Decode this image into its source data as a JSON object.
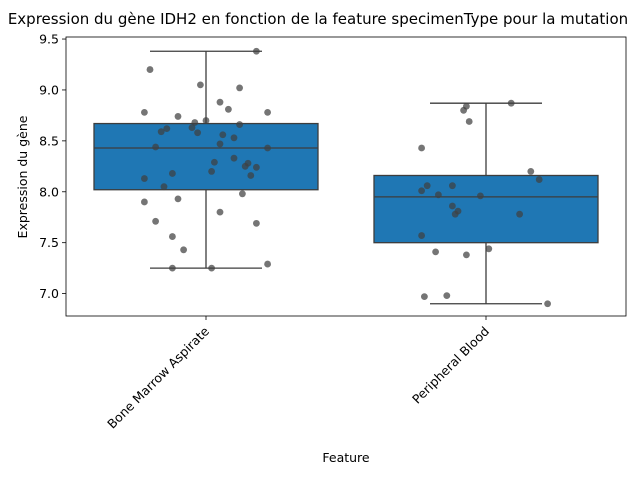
{
  "chart_data": {
    "type": "box",
    "title": "Expression du gène IDH2 en fonction de la feature specimenType pour la mutation",
    "xlabel": "Feature",
    "ylabel": "Expression du gène",
    "ylim": [
      6.78,
      9.52
    ],
    "yticks": [
      7.0,
      7.5,
      8.0,
      8.5,
      9.0,
      9.5
    ],
    "ytick_labels": [
      "7.0",
      "7.5",
      "8.0",
      "8.5",
      "9.0",
      "9.5"
    ],
    "categories": [
      "Bone Marrow Aspirate",
      "Peripheral Blood"
    ],
    "box_color": "#1f77b4",
    "point_color": "#404040",
    "boxes": [
      {
        "category": "Bone Marrow Aspirate",
        "whisker_low": 7.25,
        "q1": 8.02,
        "median": 8.43,
        "q3": 8.67,
        "whisker_high": 9.38
      },
      {
        "category": "Peripheral Blood",
        "whisker_low": 6.9,
        "q1": 7.5,
        "median": 7.95,
        "q3": 8.16,
        "whisker_high": 8.87
      }
    ],
    "points": [
      [
        {
          "j": -0.2,
          "y": 9.2
        },
        {
          "j": -0.02,
          "y": 9.05
        },
        {
          "j": 0.12,
          "y": 9.02
        },
        {
          "j": 0.18,
          "y": 9.38
        },
        {
          "j": 0.05,
          "y": 8.88
        },
        {
          "j": 0.08,
          "y": 8.81
        },
        {
          "j": 0.22,
          "y": 8.78
        },
        {
          "j": -0.22,
          "y": 8.78
        },
        {
          "j": -0.1,
          "y": 8.74
        },
        {
          "j": -0.04,
          "y": 8.68
        },
        {
          "j": 0.0,
          "y": 8.7
        },
        {
          "j": 0.12,
          "y": 8.66
        },
        {
          "j": -0.14,
          "y": 8.62
        },
        {
          "j": -0.05,
          "y": 8.63
        },
        {
          "j": -0.16,
          "y": 8.59
        },
        {
          "j": -0.03,
          "y": 8.58
        },
        {
          "j": 0.06,
          "y": 8.56
        },
        {
          "j": 0.1,
          "y": 8.53
        },
        {
          "j": 0.05,
          "y": 8.47
        },
        {
          "j": 0.22,
          "y": 8.43
        },
        {
          "j": -0.18,
          "y": 8.44
        },
        {
          "j": 0.1,
          "y": 8.33
        },
        {
          "j": 0.03,
          "y": 8.29
        },
        {
          "j": 0.15,
          "y": 8.28
        },
        {
          "j": 0.18,
          "y": 8.24
        },
        {
          "j": 0.14,
          "y": 8.25
        },
        {
          "j": 0.02,
          "y": 8.2
        },
        {
          "j": -0.12,
          "y": 8.18
        },
        {
          "j": 0.16,
          "y": 8.16
        },
        {
          "j": -0.22,
          "y": 8.13
        },
        {
          "j": -0.15,
          "y": 8.05
        },
        {
          "j": 0.13,
          "y": 7.98
        },
        {
          "j": -0.1,
          "y": 7.93
        },
        {
          "j": -0.22,
          "y": 7.9
        },
        {
          "j": 0.05,
          "y": 7.8
        },
        {
          "j": -0.18,
          "y": 7.71
        },
        {
          "j": 0.18,
          "y": 7.69
        },
        {
          "j": -0.12,
          "y": 7.56
        },
        {
          "j": -0.08,
          "y": 7.43
        },
        {
          "j": 0.22,
          "y": 7.29
        },
        {
          "j": -0.12,
          "y": 7.25
        },
        {
          "j": 0.02,
          "y": 7.25
        }
      ],
      [
        {
          "j": 0.09,
          "y": 8.87
        },
        {
          "j": -0.07,
          "y": 8.84
        },
        {
          "j": -0.08,
          "y": 8.8
        },
        {
          "j": -0.06,
          "y": 8.69
        },
        {
          "j": -0.23,
          "y": 8.43
        },
        {
          "j": 0.16,
          "y": 8.2
        },
        {
          "j": 0.19,
          "y": 8.12
        },
        {
          "j": -0.21,
          "y": 8.06
        },
        {
          "j": -0.12,
          "y": 8.06
        },
        {
          "j": -0.23,
          "y": 8.01
        },
        {
          "j": -0.17,
          "y": 7.97
        },
        {
          "j": -0.02,
          "y": 7.96
        },
        {
          "j": -0.12,
          "y": 7.86
        },
        {
          "j": -0.1,
          "y": 7.81
        },
        {
          "j": -0.11,
          "y": 7.78
        },
        {
          "j": 0.12,
          "y": 7.78
        },
        {
          "j": -0.23,
          "y": 7.57
        },
        {
          "j": 0.01,
          "y": 7.44
        },
        {
          "j": -0.18,
          "y": 7.41
        },
        {
          "j": -0.07,
          "y": 7.38
        },
        {
          "j": -0.14,
          "y": 6.98
        },
        {
          "j": -0.22,
          "y": 6.97
        },
        {
          "j": 0.22,
          "y": 6.9
        }
      ]
    ]
  }
}
